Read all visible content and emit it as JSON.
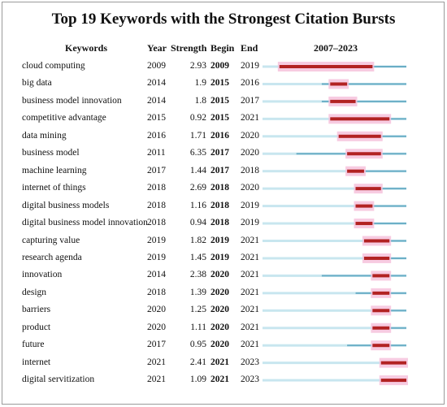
{
  "title": "Top 19 Keywords with the Strongest Citation Bursts",
  "headers": {
    "keywords": "Keywords",
    "year": "Year",
    "strength": "Strength",
    "begin": "Begin",
    "end": "End",
    "range": "2007–2023"
  },
  "colors": {
    "base": "#c8e6ef",
    "present": "#6aaec6",
    "burst": "#b22222",
    "halo": "#f6c2dc"
  },
  "chart_data": {
    "type": "table",
    "timeline": [
      2007,
      2023
    ],
    "keywords": [
      {
        "keyword": "cloud computing",
        "year": "2009",
        "strength": "2.93",
        "begin": "2009",
        "end": "2019"
      },
      {
        "keyword": "big data",
        "year": "2014",
        "strength": "1.9",
        "begin": "2015",
        "end": "2016"
      },
      {
        "keyword": "business model innovation",
        "year": "2014",
        "strength": "1.8",
        "begin": "2015",
        "end": "2017"
      },
      {
        "keyword": "competitive advantage",
        "year": "2015",
        "strength": "0.92",
        "begin": "2015",
        "end": "2021"
      },
      {
        "keyword": "data mining",
        "year": "2016",
        "strength": "1.71",
        "begin": "2016",
        "end": "2020"
      },
      {
        "keyword": "business model",
        "year": "2011",
        "strength": "6.35",
        "begin": "2017",
        "end": "2020"
      },
      {
        "keyword": "machine learning",
        "year": "2017",
        "strength": "1.44",
        "begin": "2017",
        "end": "2018"
      },
      {
        "keyword": "internet of things",
        "year": "2018",
        "strength": "2.69",
        "begin": "2018",
        "end": "2020"
      },
      {
        "keyword": "digital business models",
        "year": "2018",
        "strength": "1.16",
        "begin": "2018",
        "end": "2019"
      },
      {
        "keyword": "digital business model innovation",
        "year": "2018",
        "strength": "0.94",
        "begin": "2018",
        "end": "2019"
      },
      {
        "keyword": "capturing value",
        "year": "2019",
        "strength": "1.82",
        "begin": "2019",
        "end": "2021"
      },
      {
        "keyword": "research agenda",
        "year": "2019",
        "strength": "1.45",
        "begin": "2019",
        "end": "2021"
      },
      {
        "keyword": "innovation",
        "year": "2014",
        "strength": "2.38",
        "begin": "2020",
        "end": "2021"
      },
      {
        "keyword": "design",
        "year": "2018",
        "strength": "1.39",
        "begin": "2020",
        "end": "2021"
      },
      {
        "keyword": "barriers",
        "year": "2020",
        "strength": "1.25",
        "begin": "2020",
        "end": "2021"
      },
      {
        "keyword": "product",
        "year": "2020",
        "strength": "1.11",
        "begin": "2020",
        "end": "2021"
      },
      {
        "keyword": "future",
        "year": "2017",
        "strength": "0.95",
        "begin": "2020",
        "end": "2021"
      },
      {
        "keyword": "internet",
        "year": "2021",
        "strength": "2.41",
        "begin": "2021",
        "end": "2023"
      },
      {
        "keyword": "digital servitization",
        "year": "2021",
        "strength": "1.09",
        "begin": "2021",
        "end": "2023"
      }
    ]
  }
}
